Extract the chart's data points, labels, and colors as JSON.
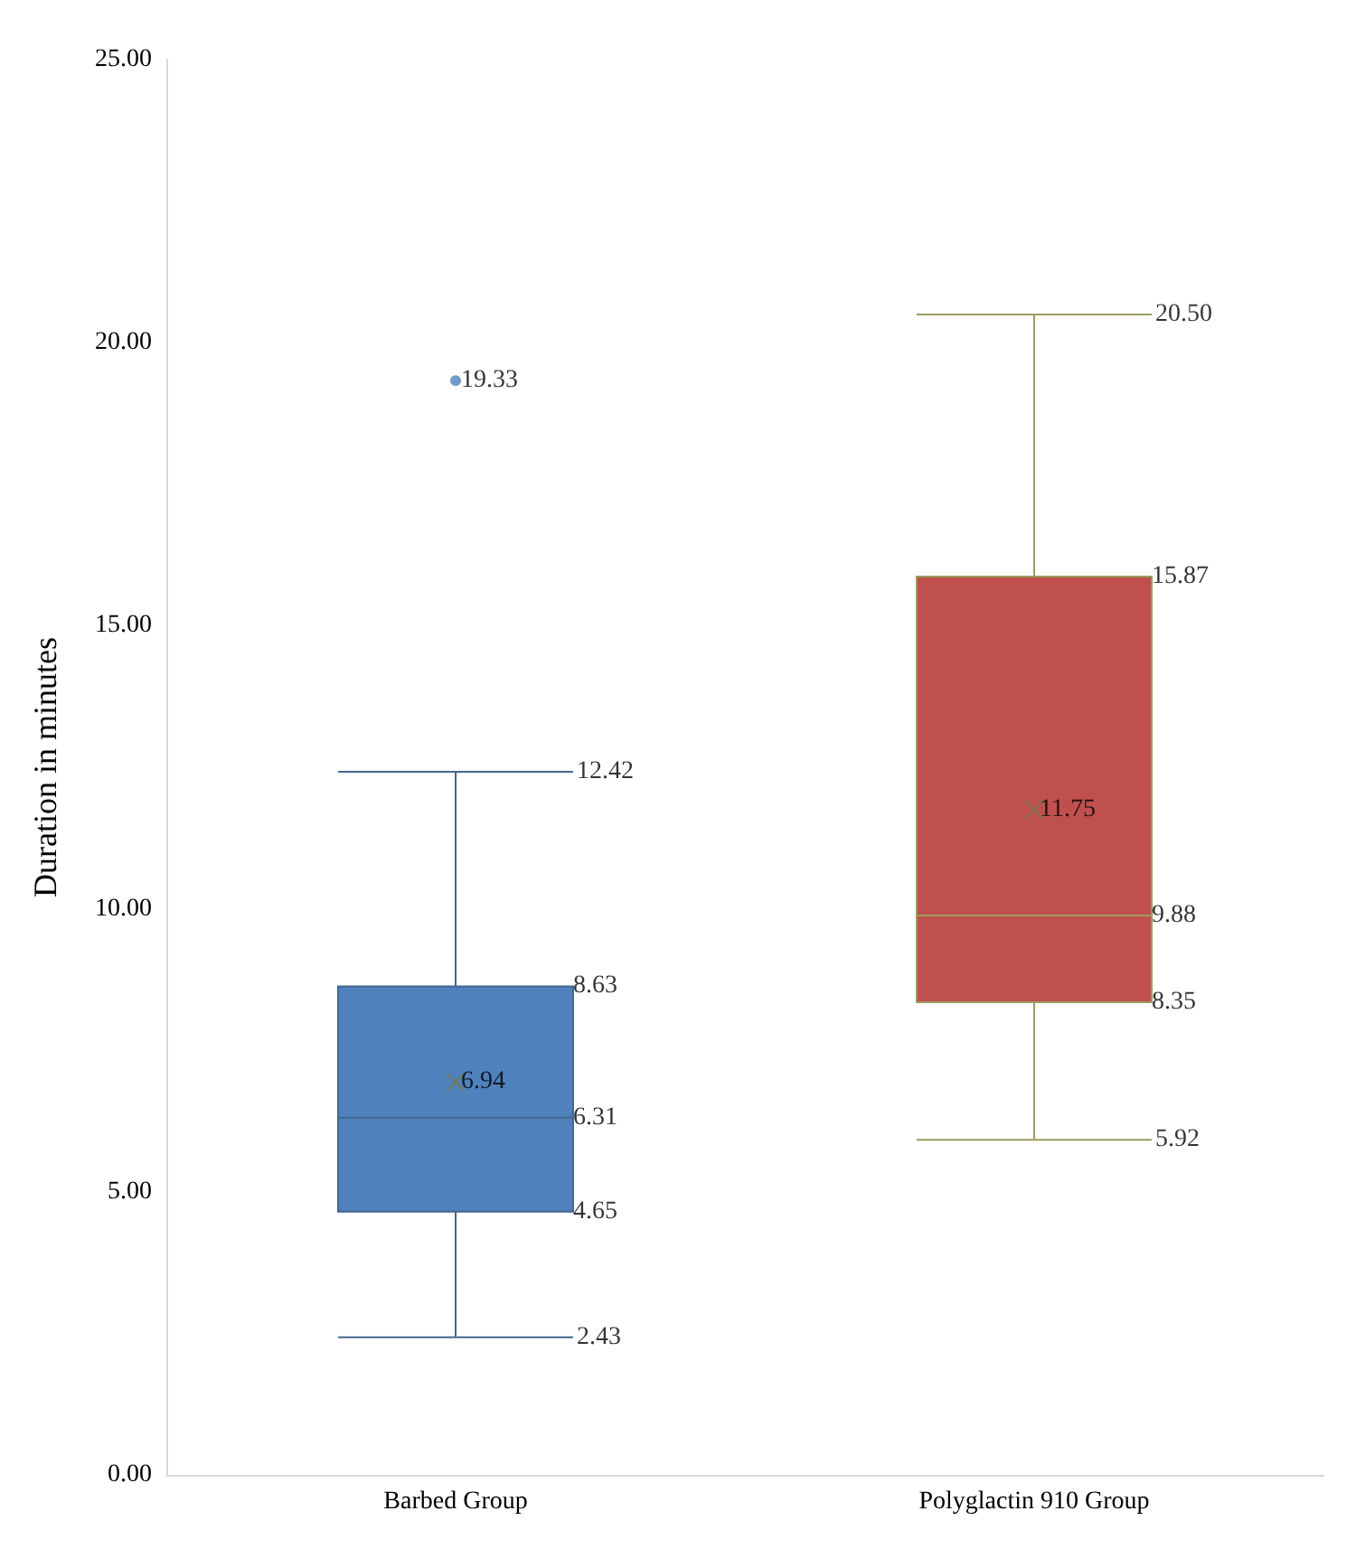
{
  "chart_data": {
    "type": "box",
    "ylabel": "Duration in minutes",
    "categories": [
      "Barbed Group",
      "Polyglactin 910 Group"
    ],
    "boxes": [
      {
        "low": 2.43,
        "q1": 4.65,
        "median": 6.31,
        "q3": 8.63,
        "high": 12.42,
        "mean": 6.94,
        "outliers": [
          19.33
        ]
      },
      {
        "low": 5.92,
        "q1": 8.35,
        "median": 9.88,
        "q3": 15.87,
        "high": 20.5,
        "mean": 11.75
      }
    ],
    "colors": [
      "#4f81bd",
      "#c0504d"
    ],
    "ylim": [
      0,
      25
    ],
    "yticks": [
      {
        "value": 0,
        "label": "0.00"
      },
      {
        "value": 5,
        "label": "5.00"
      },
      {
        "value": 10,
        "label": "10.00"
      },
      {
        "value": 15,
        "label": "15.00"
      },
      {
        "value": 20,
        "label": "20.00"
      },
      {
        "value": 25,
        "label": "25.00"
      }
    ],
    "annotations": [
      "19.33",
      "12.42",
      "8.63",
      "6.94",
      "6.31",
      "4.65",
      "2.43",
      "20.50",
      "15.87",
      "11.75",
      "9.88",
      "8.35",
      "5.92"
    ],
    "grid": false
  }
}
